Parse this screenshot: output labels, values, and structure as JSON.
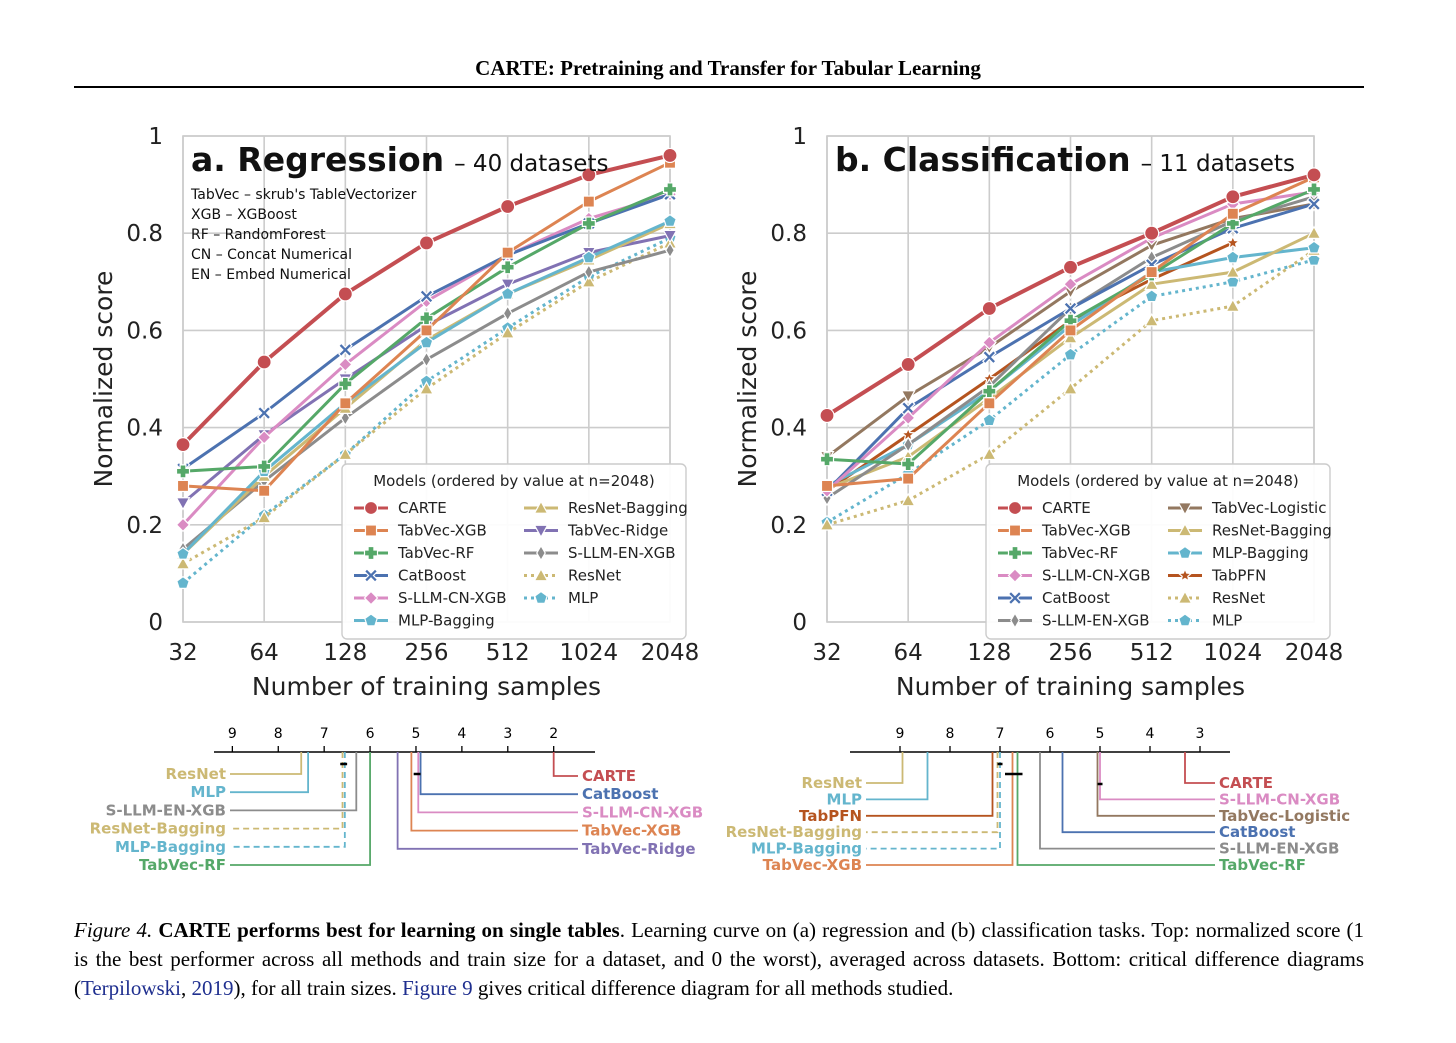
{
  "header": {
    "title": "CARTE: Pretraining and Transfer for Tabular Learning"
  },
  "colors": {
    "CARTE": "#c44e52",
    "TabVec-XGB": "#dd8452",
    "TabVec-RF": "#55a868",
    "CatBoost": "#4c72b0",
    "S-LLM-CN-XGB": "#da8bc3",
    "MLP-Bagging": "#64b5cd",
    "ResNet-Bagging": "#ccb974",
    "TabVec-Ridge": "#8172b3",
    "S-LLM-EN-XGB": "#8c8c8c",
    "ResNet": "#ccb974",
    "MLP": "#64b5cd",
    "TabVec-Logistic": "#937860",
    "TabPFN": "#b5541f"
  },
  "chart_data": [
    {
      "type": "line",
      "panel_label": "a. Regression",
      "subtitle": "– 40 datasets",
      "annotations": [
        "TabVec – skrub's TableVectorizer",
        "XGB – XGBoost",
        "RF – RandomForest",
        "CN – Concat Numerical",
        "EN – Embed Numerical"
      ],
      "xlabel": "Number of training samples",
      "ylabel": "Normalized score",
      "x": [
        "32",
        "64",
        "128",
        "256",
        "512",
        "1024",
        "2048"
      ],
      "x_scale": "log2",
      "ylim": [
        0,
        1
      ],
      "yticks": [
        "0",
        "0.2",
        "0.4",
        "0.6",
        "0.8",
        "1"
      ],
      "grid": true,
      "legend_title": "Models (ordered by value at n=2048)",
      "legend_position": "lower-right",
      "legend_columns": 2,
      "series": [
        {
          "name": "CARTE",
          "marker": "circle",
          "dash": "solid",
          "values": [
            0.365,
            0.535,
            0.675,
            0.78,
            0.855,
            0.92,
            0.96
          ]
        },
        {
          "name": "TabVec-XGB",
          "marker": "square",
          "dash": "solid",
          "values": [
            0.28,
            0.27,
            0.45,
            0.6,
            0.76,
            0.865,
            0.945
          ]
        },
        {
          "name": "TabVec-RF",
          "marker": "plus",
          "dash": "solid",
          "values": [
            0.31,
            0.32,
            0.49,
            0.625,
            0.73,
            0.82,
            0.89
          ]
        },
        {
          "name": "CatBoost",
          "marker": "x",
          "dash": "solid",
          "values": [
            0.315,
            0.43,
            0.56,
            0.67,
            0.755,
            0.82,
            0.88
          ]
        },
        {
          "name": "S-LLM-CN-XGB",
          "marker": "diamond",
          "dash": "solid",
          "values": [
            0.2,
            0.38,
            0.53,
            0.66,
            0.755,
            0.83,
            0.88
          ]
        },
        {
          "name": "MLP-Bagging",
          "marker": "pentagon",
          "dash": "solid",
          "values": [
            0.14,
            0.31,
            0.45,
            0.575,
            0.675,
            0.75,
            0.825
          ]
        },
        {
          "name": "ResNet-Bagging",
          "marker": "triangle-up",
          "dash": "solid",
          "values": [
            0.14,
            0.3,
            0.44,
            0.58,
            0.675,
            0.745,
            0.82
          ]
        },
        {
          "name": "TabVec-Ridge",
          "marker": "triangle-down",
          "dash": "solid",
          "values": [
            0.245,
            0.385,
            0.5,
            0.61,
            0.695,
            0.76,
            0.795
          ]
        },
        {
          "name": "S-LLM-EN-XGB",
          "marker": "thin-diamond",
          "dash": "solid",
          "values": [
            0.15,
            0.29,
            0.42,
            0.54,
            0.635,
            0.72,
            0.765
          ]
        },
        {
          "name": "ResNet",
          "marker": "triangle-up",
          "dash": "dotted",
          "values": [
            0.12,
            0.215,
            0.345,
            0.48,
            0.595,
            0.7,
            0.78
          ]
        },
        {
          "name": "MLP",
          "marker": "pentagon",
          "dash": "dotted",
          "values": [
            0.08,
            0.22,
            0.345,
            0.495,
            0.605,
            0.71,
            0.79
          ]
        }
      ]
    },
    {
      "type": "line",
      "panel_label": "b. Classification",
      "subtitle": "– 11 datasets",
      "annotations": [],
      "xlabel": "Number of training samples",
      "ylabel": "Normalized score",
      "x": [
        "32",
        "64",
        "128",
        "256",
        "512",
        "1024",
        "2048"
      ],
      "x_scale": "log2",
      "ylim": [
        0,
        1
      ],
      "yticks": [
        "0",
        "0.2",
        "0.4",
        "0.6",
        "0.8",
        "1"
      ],
      "grid": true,
      "legend_title": "Models (ordered by value at n=2048)",
      "legend_position": "lower-right",
      "legend_columns": 2,
      "series": [
        {
          "name": "CARTE",
          "marker": "circle",
          "dash": "solid",
          "values": [
            0.425,
            0.53,
            0.645,
            0.73,
            0.8,
            0.875,
            0.92
          ]
        },
        {
          "name": "TabVec-XGB",
          "marker": "square",
          "dash": "solid",
          "values": [
            0.28,
            0.295,
            0.45,
            0.6,
            0.72,
            0.84,
            0.915
          ]
        },
        {
          "name": "TabVec-RF",
          "marker": "plus",
          "dash": "solid",
          "values": [
            0.335,
            0.325,
            0.475,
            0.62,
            0.715,
            0.82,
            0.89
          ]
        },
        {
          "name": "S-LLM-CN-XGB",
          "marker": "diamond",
          "dash": "solid",
          "values": [
            0.27,
            0.42,
            0.575,
            0.695,
            0.79,
            0.86,
            0.885
          ]
        },
        {
          "name": "CatBoost",
          "marker": "x",
          "dash": "solid",
          "values": [
            0.27,
            0.44,
            0.545,
            0.645,
            0.735,
            0.81,
            0.86
          ]
        },
        {
          "name": "S-LLM-EN-XGB",
          "marker": "thin-diamond",
          "dash": "solid",
          "values": [
            0.255,
            0.365,
            0.485,
            0.645,
            0.75,
            0.825,
            0.875
          ]
        },
        {
          "name": "TabVec-Logistic",
          "marker": "triangle-down",
          "dash": "solid",
          "values": [
            0.34,
            0.465,
            0.565,
            0.68,
            0.775,
            0.83,
            0.86
          ]
        },
        {
          "name": "ResNet-Bagging",
          "marker": "triangle-up",
          "dash": "solid",
          "values": [
            0.275,
            0.34,
            0.46,
            0.585,
            0.695,
            0.72,
            0.8
          ]
        },
        {
          "name": "MLP-Bagging",
          "marker": "pentagon",
          "dash": "solid",
          "values": [
            0.28,
            0.365,
            0.475,
            0.61,
            0.72,
            0.75,
            0.77
          ]
        },
        {
          "name": "TabPFN",
          "marker": "star",
          "dash": "solid",
          "values": [
            0.27,
            0.385,
            0.5,
            0.62,
            0.705,
            0.78,
            null
          ]
        },
        {
          "name": "ResNet",
          "marker": "triangle-up",
          "dash": "dotted",
          "values": [
            0.2,
            0.25,
            0.345,
            0.48,
            0.62,
            0.65,
            0.765
          ]
        },
        {
          "name": "MLP",
          "marker": "pentagon",
          "dash": "dotted",
          "values": [
            0.205,
            0.305,
            0.415,
            0.55,
            0.67,
            0.7,
            0.745
          ]
        }
      ]
    }
  ],
  "cd_diagrams": [
    {
      "axis_ticks": [
        9,
        8,
        7,
        6,
        5,
        4,
        3,
        2
      ],
      "axis_range": [
        9.4,
        1.1
      ],
      "left": [
        {
          "name": "ResNet",
          "rank": 7.5
        },
        {
          "name": "MLP",
          "rank": 7.35
        },
        {
          "name": "S-LLM-EN-XGB",
          "rank": 6.3
        },
        {
          "name": "ResNet-Bagging",
          "rank": 6.6
        },
        {
          "name": "MLP-Bagging",
          "rank": 6.55
        },
        {
          "name": "TabVec-RF",
          "rank": 6.0
        }
      ],
      "right": [
        {
          "name": "CARTE",
          "rank": 2.0
        },
        {
          "name": "CatBoost",
          "rank": 4.9
        },
        {
          "name": "S-LLM-CN-XGB",
          "rank": 4.95
        },
        {
          "name": "TabVec-XGB",
          "rank": 5.1
        },
        {
          "name": "TabVec-Ridge",
          "rank": 5.4
        }
      ],
      "cliques": [
        [
          6.65,
          6.5
        ],
        [
          5.05,
          4.9
        ]
      ]
    },
    {
      "axis_ticks": [
        9,
        8,
        7,
        6,
        5,
        4,
        3
      ],
      "axis_range": [
        10.0,
        2.4
      ],
      "left": [
        {
          "name": "ResNet",
          "rank": 8.95
        },
        {
          "name": "MLP",
          "rank": 8.45
        },
        {
          "name": "TabPFN",
          "rank": 7.15
        },
        {
          "name": "ResNet-Bagging",
          "rank": 7.05
        },
        {
          "name": "MLP-Bagging",
          "rank": 7.0
        },
        {
          "name": "TabVec-XGB",
          "rank": 6.75
        }
      ],
      "right": [
        {
          "name": "CARTE",
          "rank": 3.3
        },
        {
          "name": "S-LLM-CN-XGB",
          "rank": 5.0
        },
        {
          "name": "TabVec-Logistic",
          "rank": 5.05
        },
        {
          "name": "CatBoost",
          "rank": 5.75
        },
        {
          "name": "S-LLM-EN-XGB",
          "rank": 6.2
        },
        {
          "name": "TabVec-RF",
          "rank": 6.65
        }
      ],
      "cliques": [
        [
          7.05,
          6.95
        ],
        [
          6.9,
          6.55
        ],
        [
          5.05,
          4.95
        ]
      ]
    }
  ],
  "caption": {
    "label": "Figure 4.",
    "title": "CARTE performs best for learning on single tables",
    "text1": ". Learning curve on (a) regression and (b) classification tasks. Top: normalized score (1 is the best performer across all methods and train size for a dataset, and 0 the worst), averaged across datasets. Bottom: critical difference diagrams (",
    "cite_author": "Terpilowski",
    "cite_sep": ", ",
    "cite_year": "2019",
    "text2": "), for all train sizes. ",
    "fig_ref": "Figure 9",
    "text3": " gives critical difference diagram for all methods studied."
  }
}
